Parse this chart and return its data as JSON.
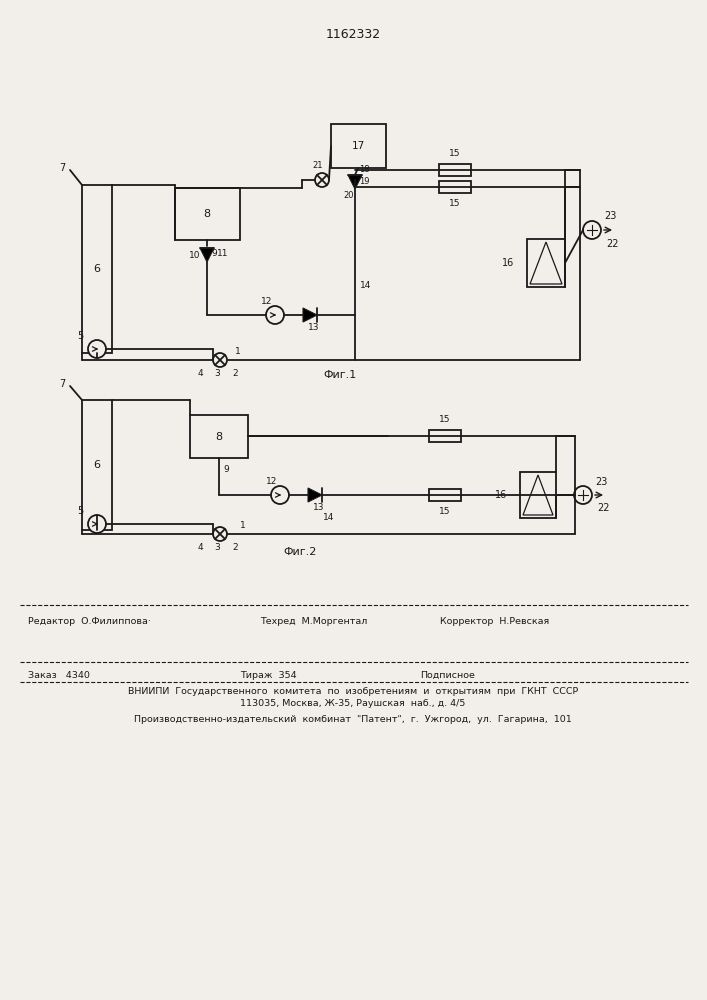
{
  "title": "1162332",
  "fig1_label": "Фиг.1",
  "fig2_label": "Фиг.2",
  "bg_color": "#f2eeea",
  "line_color": "#1a1a1a",
  "footer_editor": "Редактор  О.Филиппова·",
  "footer_techred": "Техред  М.Моргентал",
  "footer_corrector": "Корректор  Н.Ревская",
  "footer_zakaz": "Заказ   4340",
  "footer_tirazh": "Тираж  354",
  "footer_podp": "Подписное",
  "footer_vnipi": "ВНИИПИ  Государственного  комитета  по  изобретениям  и  открытиям  при  ГКНТ  СССР",
  "footer_addr": "113035, Москва, Ж-35, Раушская  наб., д. 4/5",
  "footer_plant": "Производственно-издательский  комбинат  \"Патент\",  г.  Ужгород,  ул.  Гагарина,  101"
}
